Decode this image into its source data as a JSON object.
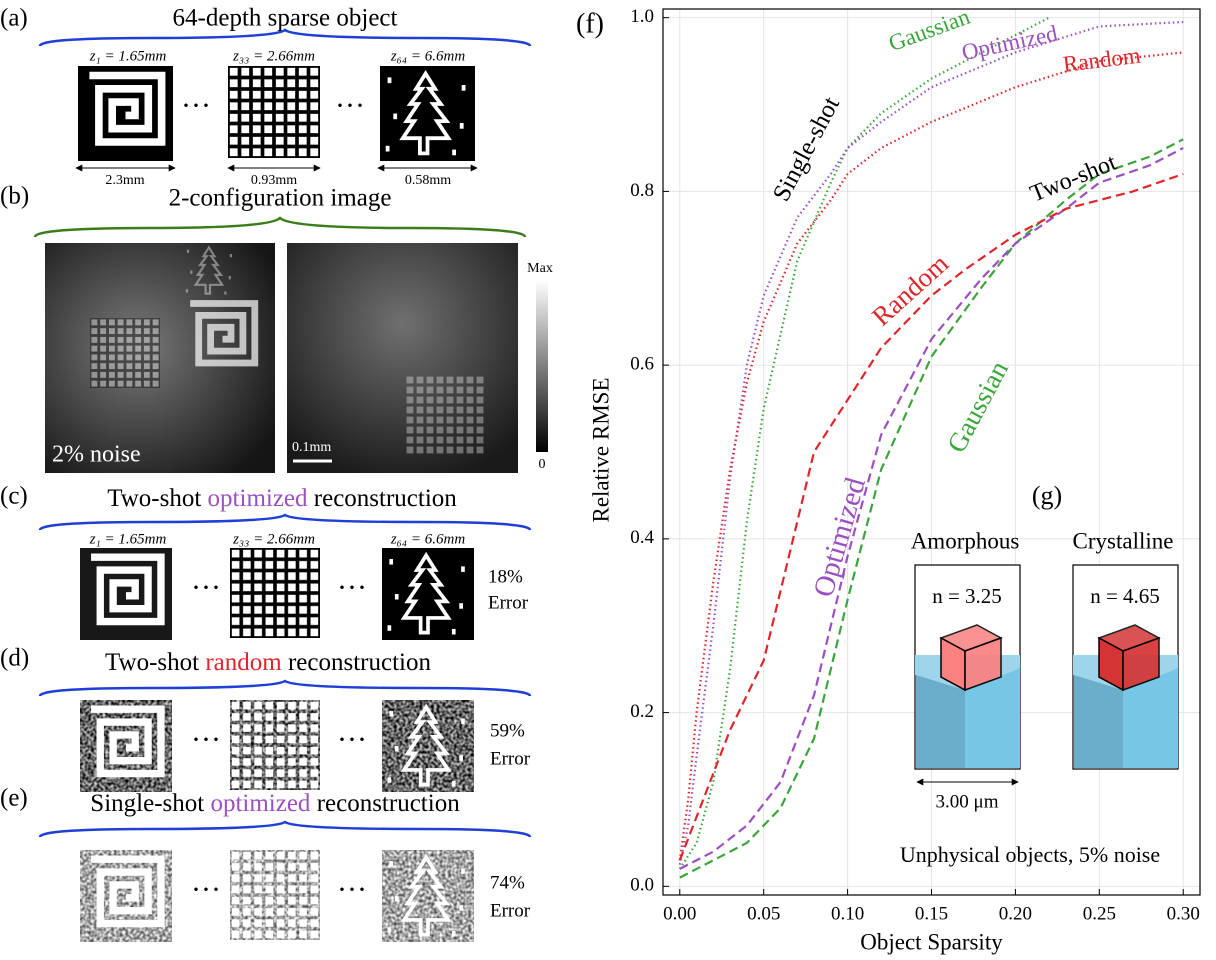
{
  "panels": {
    "a": {
      "label": "(a)",
      "title": "64-depth sparse object",
      "depths": [
        "z₁ = 1.65mm",
        "z₃₃ = 2.66mm",
        "z₆₄ = 6.6mm"
      ],
      "sizes": [
        "2.3mm",
        "0.93mm",
        "0.58mm"
      ]
    },
    "b": {
      "label": "(b)",
      "title": "2-configuration image",
      "noise": "2% noise",
      "scale": "0.1mm",
      "colorbar": [
        "Max",
        "0"
      ]
    },
    "c": {
      "label": "(c)",
      "title": [
        "Two-shot ",
        "optimized",
        " reconstruction"
      ],
      "depths": [
        "z₁ = 1.65mm",
        "z₃₃ = 2.66mm",
        "z₆₄ = 6.6mm"
      ],
      "error": [
        "18%",
        "Error"
      ]
    },
    "d": {
      "label": "(d)",
      "title": [
        "Two-shot ",
        "random",
        " reconstruction"
      ],
      "error": [
        "59%",
        "Error"
      ]
    },
    "e": {
      "label": "(e)",
      "title": [
        "Single-shot ",
        "optimized",
        " reconstruction"
      ],
      "error": [
        "74%",
        "Error"
      ]
    }
  },
  "chart_data": {
    "type": "line",
    "x_label": "Object Sparsity",
    "y_label": "Relative RMSE",
    "xlim": [
      -0.01,
      0.31
    ],
    "ylim": [
      -0.01,
      1.01
    ],
    "xticks": [
      {
        "value": 0,
        "label": "0.00"
      },
      {
        "value": 0.05,
        "label": "0.05"
      },
      {
        "value": 0.1,
        "label": "0.10"
      },
      {
        "value": 0.15,
        "label": "0.15"
      },
      {
        "value": 0.2,
        "label": "0.20"
      },
      {
        "value": 0.25,
        "label": "0.25"
      },
      {
        "value": 0.3,
        "label": "0.30"
      }
    ],
    "yticks": [
      {
        "value": 0,
        "label": "0.0"
      },
      {
        "value": 0.2,
        "label": "0.2"
      },
      {
        "value": 0.4,
        "label": "0.4"
      },
      {
        "value": 0.6,
        "label": "0.6"
      },
      {
        "value": 0.8,
        "label": "0.8"
      },
      {
        "value": 1,
        "label": "1.0"
      }
    ],
    "grid": true,
    "series": [
      {
        "name": "Gaussian",
        "color": "#3aa63a",
        "style": "dotted",
        "x": [
          0,
          0.01,
          0.02,
          0.03,
          0.04,
          0.05,
          0.07,
          0.09,
          0.1,
          0.12,
          0.15,
          0.2,
          0.22
        ],
        "values": [
          0.02,
          0.05,
          0.12,
          0.25,
          0.42,
          0.55,
          0.72,
          0.81,
          0.85,
          0.89,
          0.93,
          0.98,
          1.0
        ]
      },
      {
        "name": "Optimized",
        "color": "#9b4fc0",
        "style": "dotted",
        "x": [
          0,
          0.005,
          0.01,
          0.02,
          0.03,
          0.04,
          0.05,
          0.07,
          0.09,
          0.1,
          0.12,
          0.15,
          0.2,
          0.25,
          0.3
        ],
        "values": [
          0.025,
          0.07,
          0.15,
          0.3,
          0.47,
          0.6,
          0.68,
          0.77,
          0.82,
          0.85,
          0.88,
          0.92,
          0.96,
          0.99,
          0.995
        ]
      },
      {
        "name": "Random",
        "color": "#e0262a",
        "style": "dotted",
        "x": [
          0,
          0.005,
          0.01,
          0.02,
          0.03,
          0.04,
          0.05,
          0.07,
          0.09,
          0.1,
          0.12,
          0.15,
          0.2,
          0.25,
          0.3
        ],
        "values": [
          0.03,
          0.1,
          0.2,
          0.35,
          0.48,
          0.58,
          0.65,
          0.74,
          0.79,
          0.82,
          0.85,
          0.88,
          0.92,
          0.95,
          0.96
        ]
      },
      {
        "name": "Gaussian",
        "color": "#3aa63a",
        "style": "dashed",
        "x": [
          0,
          0.02,
          0.04,
          0.06,
          0.08,
          0.1,
          0.12,
          0.15,
          0.18,
          0.2,
          0.23,
          0.25,
          0.28,
          0.3
        ],
        "values": [
          0.01,
          0.03,
          0.05,
          0.09,
          0.17,
          0.33,
          0.48,
          0.61,
          0.69,
          0.74,
          0.79,
          0.82,
          0.84,
          0.86
        ]
      },
      {
        "name": "Optimized",
        "color": "#9b4fc0",
        "style": "dashed",
        "x": [
          0,
          0.02,
          0.04,
          0.06,
          0.08,
          0.1,
          0.12,
          0.15,
          0.18,
          0.2,
          0.23,
          0.25,
          0.28,
          0.3
        ],
        "values": [
          0.02,
          0.04,
          0.07,
          0.12,
          0.22,
          0.38,
          0.52,
          0.63,
          0.7,
          0.74,
          0.78,
          0.81,
          0.83,
          0.85
        ]
      },
      {
        "name": "Random",
        "color": "#e0262a",
        "style": "dashed",
        "x": [
          0,
          0.01,
          0.02,
          0.03,
          0.05,
          0.07,
          0.08,
          0.1,
          0.12,
          0.15,
          0.17,
          0.2,
          0.23,
          0.25,
          0.27,
          0.3
        ],
        "values": [
          0.03,
          0.08,
          0.13,
          0.18,
          0.26,
          0.42,
          0.5,
          0.56,
          0.62,
          0.68,
          0.71,
          0.75,
          0.78,
          0.79,
          0.8,
          0.82
        ]
      }
    ],
    "annotations": [
      "(f)",
      "Single-shot",
      "Two-shot",
      "Unphysical objects, 5% noise",
      "(g)"
    ],
    "inset": {
      "materials": [
        {
          "name": "Amorphous",
          "index": "n = 3.25"
        },
        {
          "name": "Crystalline",
          "index": "n = 4.65"
        }
      ],
      "scale": "3.00 μm"
    }
  }
}
